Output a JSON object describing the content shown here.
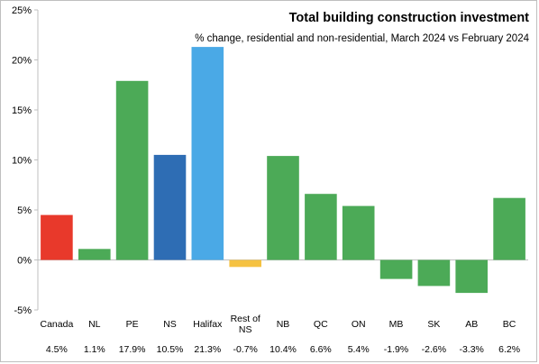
{
  "chart_data": {
    "type": "bar",
    "title": "Total building construction  investment",
    "subtitle": "% change, residential and non-residential, March 2024 vs February 2024",
    "categories": [
      "Canada",
      "NL",
      "PE",
      "NS",
      "Halifax",
      "Rest of NS",
      "NB",
      "QC",
      "ON",
      "MB",
      "SK",
      "AB",
      "BC"
    ],
    "category_lines": [
      [
        "Canada"
      ],
      [
        "NL"
      ],
      [
        "PE"
      ],
      [
        "NS"
      ],
      [
        "Halifax"
      ],
      [
        "Rest of",
        "NS"
      ],
      [
        "NB"
      ],
      [
        "QC"
      ],
      [
        "ON"
      ],
      [
        "MB"
      ],
      [
        "SK"
      ],
      [
        "AB"
      ],
      [
        "BC"
      ]
    ],
    "values": [
      4.5,
      1.1,
      17.9,
      10.5,
      21.3,
      -0.7,
      10.4,
      6.6,
      5.4,
      -1.9,
      -2.6,
      -3.3,
      6.2
    ],
    "value_labels": [
      "4.5%",
      "1.1%",
      "17.9%",
      "10.5%",
      "21.3%",
      "-0.7%",
      "10.4%",
      "6.6%",
      "5.4%",
      "-1.9%",
      "-2.6%",
      "-3.3%",
      "6.2%"
    ],
    "colors": [
      "#e8392b",
      "#4caa57",
      "#4caa57",
      "#2e6db4",
      "#4aa9e6",
      "#f5c242",
      "#4caa57",
      "#4caa57",
      "#4caa57",
      "#4caa57",
      "#4caa57",
      "#4caa57",
      "#4caa57"
    ],
    "ylim": [
      -5,
      25
    ],
    "yticks": [
      -5,
      0,
      5,
      10,
      15,
      20,
      25
    ],
    "ytick_labels": [
      "-5%",
      "0%",
      "5%",
      "10%",
      "15%",
      "20%",
      "25%"
    ],
    "grid": false,
    "legend": "none",
    "axis_color": "#bfbfbf"
  }
}
